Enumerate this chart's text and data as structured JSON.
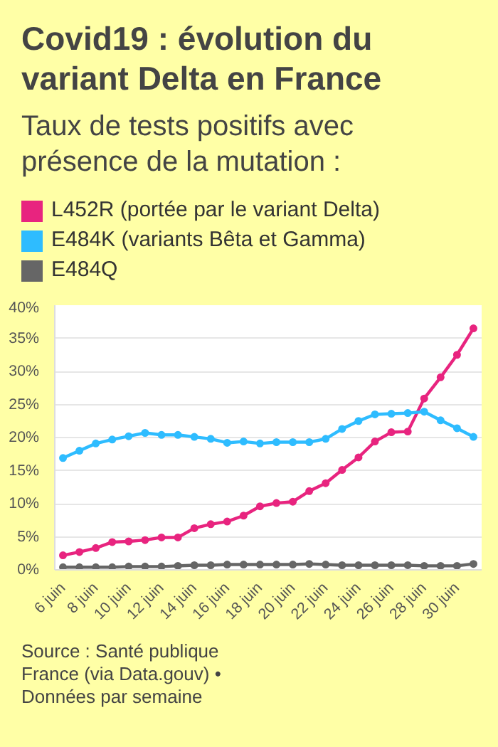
{
  "chart_data": {
    "type": "line",
    "title": "Covid19 : évolution du variant Delta en France",
    "subtitle": "Taux de tests positifs avec présence de la mutation :",
    "categories": [
      "6 juin",
      null,
      "8 juin",
      null,
      "10 juin",
      null,
      "12 juin",
      null,
      "14 juin",
      null,
      "16 juin",
      null,
      "18 juin",
      null,
      "20 juin",
      null,
      "22 juin",
      null,
      "24 juin",
      null,
      "26 juin",
      null,
      "28 juin",
      null,
      "30 juin",
      null
    ],
    "series": [
      {
        "name": "L452R (portée par le variant Delta)",
        "color": "#e8247f",
        "values": [
          2.2,
          2.7,
          3.3,
          4.2,
          4.3,
          4.5,
          4.9,
          4.9,
          6.3,
          6.9,
          7.3,
          8.2,
          9.6,
          10.1,
          10.3,
          11.9,
          13.1,
          15.1,
          17.0,
          19.4,
          20.8,
          20.9,
          25.9,
          29.1,
          32.5,
          36.5
        ]
      },
      {
        "name": "E484K (variants Bêta et Gamma)",
        "color": "#2ebcff",
        "values": [
          16.9,
          18.0,
          19.1,
          19.7,
          20.2,
          20.7,
          20.4,
          20.4,
          20.1,
          19.8,
          19.2,
          19.4,
          19.1,
          19.3,
          19.3,
          19.3,
          19.8,
          21.3,
          22.5,
          23.5,
          23.6,
          23.7,
          23.9,
          22.6,
          21.4,
          20.1
        ]
      },
      {
        "name": "E484Q",
        "color": "#666666",
        "values": [
          0.4,
          0.4,
          0.4,
          0.4,
          0.5,
          0.5,
          0.5,
          0.6,
          0.7,
          0.7,
          0.8,
          0.8,
          0.8,
          0.8,
          0.8,
          0.9,
          0.8,
          0.7,
          0.7,
          0.7,
          0.7,
          0.7,
          0.6,
          0.6,
          0.6,
          0.9
        ]
      }
    ],
    "ylim": [
      0,
      40
    ],
    "yticks": [
      {
        "value": 0,
        "label": "0%"
      },
      {
        "value": 5,
        "label": "5%"
      },
      {
        "value": 10,
        "label": "10%"
      },
      {
        "value": 15,
        "label": "15%"
      },
      {
        "value": 20,
        "label": "20%"
      },
      {
        "value": 25,
        "label": "25%"
      },
      {
        "value": 30,
        "label": "30%"
      },
      {
        "value": 35,
        "label": "35%"
      },
      {
        "value": 40,
        "label": "40%"
      }
    ],
    "grid": "y",
    "legend": "top",
    "marker": "circle",
    "line_style": "solid",
    "annotations": [
      "Source : Santé publique France (via Data.gouv) • Données par semaine"
    ]
  }
}
